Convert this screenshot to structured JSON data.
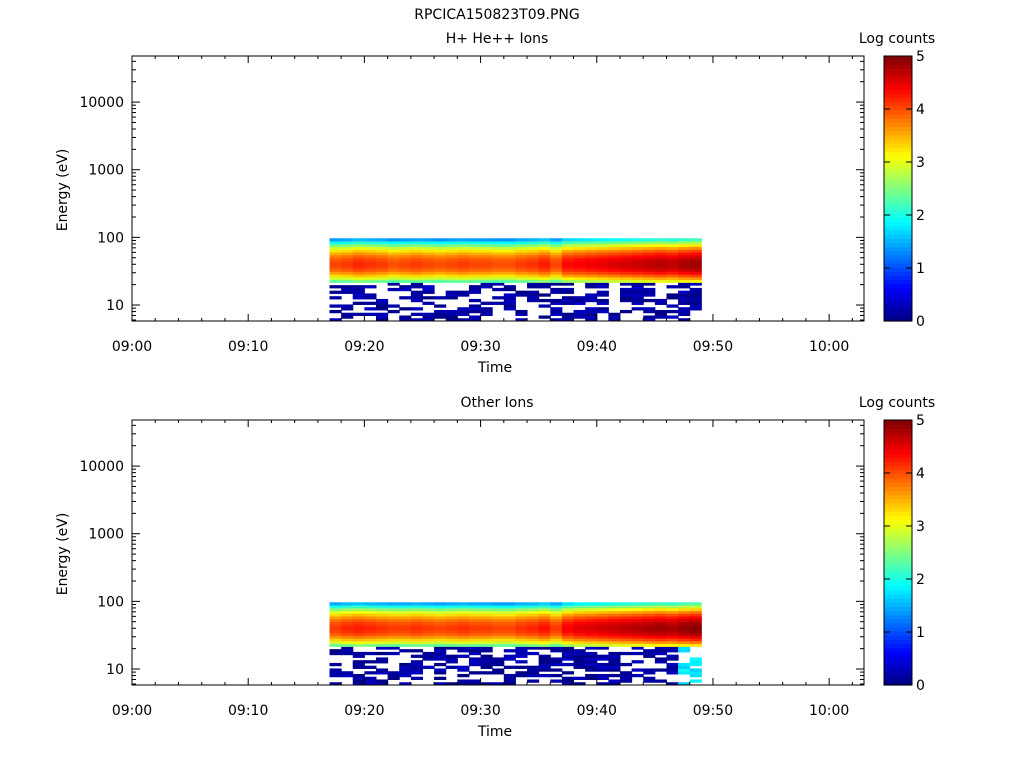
{
  "figure_title": "RPCICA150823T09.PNG",
  "chart_data": [
    {
      "type": "heatmap",
      "title": "H+ He++ Ions",
      "xlabel": "Time",
      "ylabel": "Energy (eV)",
      "yscale": "log",
      "xlim": [
        "09:00",
        "10:03"
      ],
      "ylim": [
        5.8,
        48000
      ],
      "xticks": [
        "09:00",
        "09:10",
        "09:20",
        "09:30",
        "09:40",
        "09:50",
        "10:00"
      ],
      "yticks": [
        "10",
        "100",
        "1000",
        "10000"
      ],
      "colorbar": {
        "label": "Log counts",
        "range": [
          0,
          5
        ],
        "ticks": [
          "0",
          "1",
          "2",
          "3",
          "4",
          "5"
        ]
      },
      "data_time_range": [
        "09:17",
        "09:49"
      ],
      "data_energy_range": [
        5.8,
        97
      ],
      "peak_energy": 40,
      "peak_log_counts": [
        4.05,
        4.1,
        4.2,
        4.15,
        4.1,
        4.0,
        4.05,
        4.1,
        4.05,
        4.0,
        4.05,
        4.1,
        4.05,
        4.05,
        4.0,
        4.0,
        4.1,
        4.15,
        4.25,
        4.05,
        4.35,
        4.4,
        4.45,
        4.5,
        4.55,
        4.6,
        4.65,
        4.7,
        4.75,
        4.7,
        4.8,
        4.85
      ]
    },
    {
      "type": "heatmap",
      "title": "Other Ions",
      "xlabel": "Time",
      "ylabel": "Energy (eV)",
      "yscale": "log",
      "xlim": [
        "09:00",
        "10:03"
      ],
      "ylim": [
        5.8,
        48000
      ],
      "xticks": [
        "09:00",
        "09:10",
        "09:20",
        "09:30",
        "09:40",
        "09:50",
        "10:00"
      ],
      "yticks": [
        "10",
        "100",
        "1000",
        "10000"
      ],
      "colorbar": {
        "label": "Log counts",
        "range": [
          0,
          5
        ],
        "ticks": [
          "0",
          "1",
          "2",
          "3",
          "4",
          "5"
        ]
      },
      "data_time_range": [
        "09:17",
        "09:49"
      ],
      "data_energy_range": [
        5.8,
        97
      ],
      "peak_energy": 40,
      "peak_log_counts": [
        4.1,
        4.2,
        4.25,
        4.2,
        4.15,
        4.1,
        4.1,
        4.15,
        4.1,
        4.05,
        4.1,
        4.15,
        4.1,
        4.1,
        4.05,
        4.05,
        4.15,
        4.2,
        4.3,
        4.1,
        4.4,
        4.5,
        4.55,
        4.6,
        4.65,
        4.7,
        4.75,
        4.8,
        4.85,
        4.8,
        4.9,
        4.95
      ]
    }
  ]
}
